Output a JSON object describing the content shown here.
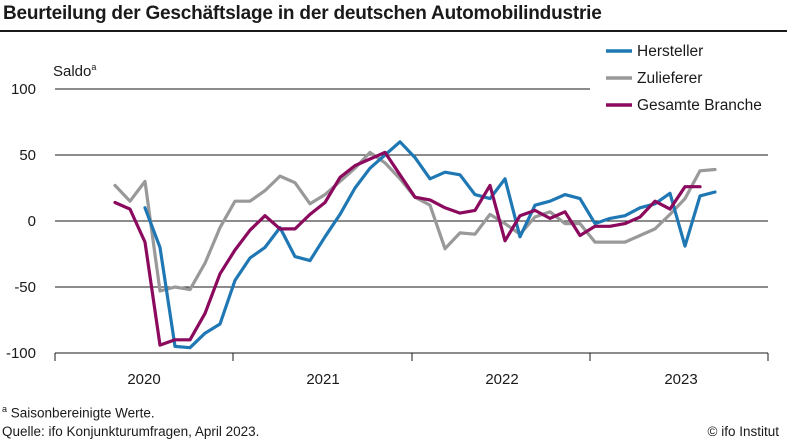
{
  "title": "Beurteilung der Geschäftslage in der deutschen Automobilindustrie",
  "footnote_marker": "a",
  "footnote_text": "Saisonbereinigte Werte.",
  "source": "Quelle: ifo Konjunkturumfragen, April 2023.",
  "credit": "© ifo Institut",
  "chart_data": {
    "type": "line",
    "ylabel": "Saldo",
    "ylabel_marker": "a",
    "ylim": [
      -100,
      100
    ],
    "yticks": [
      100,
      50,
      0,
      -50,
      -100
    ],
    "grid": "horizontal",
    "legend_position": "top-right",
    "year_labels": [
      "2020",
      "2021",
      "2022",
      "2023"
    ],
    "x": [
      "2019-07",
      "2019-08",
      "2019-09",
      "2019-10",
      "2019-11",
      "2019-12",
      "2020-01",
      "2020-02",
      "2020-03",
      "2020-04",
      "2020-05",
      "2020-06",
      "2020-07",
      "2020-08",
      "2020-09",
      "2020-10",
      "2020-11",
      "2020-12",
      "2021-01",
      "2021-02",
      "2021-03",
      "2021-04",
      "2021-05",
      "2021-06",
      "2021-07",
      "2021-08",
      "2021-09",
      "2021-10",
      "2021-11",
      "2021-12",
      "2022-01",
      "2022-02",
      "2022-03",
      "2022-04",
      "2022-05",
      "2022-06",
      "2022-07",
      "2022-08",
      "2022-09",
      "2022-10",
      "2022-11",
      "2022-12",
      "2023-01",
      "2023-02",
      "2023-03",
      "2023-04"
    ],
    "series": [
      {
        "name": "Hersteller",
        "color": "#1f78b4",
        "values": [
          null,
          null,
          10,
          -20,
          -95,
          -96,
          -85,
          -78,
          -45,
          -28,
          -20,
          -5,
          -27,
          -30,
          -12,
          5,
          25,
          40,
          50,
          60,
          48,
          32,
          37,
          35,
          20,
          17,
          32,
          -12,
          12,
          15,
          20,
          17,
          -2,
          2,
          4,
          10,
          13,
          21,
          -19,
          19,
          22,
          null,
          null,
          null,
          null,
          null
        ]
      },
      {
        "name": "Zulieferer",
        "color": "#999999",
        "values": [
          27,
          15,
          30,
          -53,
          -50,
          -52,
          -32,
          -5,
          15,
          15,
          23,
          34,
          29,
          13,
          20,
          30,
          40,
          52,
          44,
          32,
          18,
          12,
          -21,
          -9,
          -10,
          5,
          -2,
          -10,
          3,
          7,
          -2,
          -2,
          -16,
          -16,
          -16,
          -11,
          -6,
          5,
          17,
          38,
          39,
          null,
          null,
          null,
          null,
          null
        ]
      },
      {
        "name": "Gesamte Branche",
        "color": "#8b0a5e",
        "values": [
          14,
          9,
          -16,
          -94,
          -90,
          -90,
          -70,
          -40,
          -22,
          -7,
          4,
          -6,
          -6,
          5,
          14,
          33,
          42,
          47,
          52,
          35,
          18,
          16,
          10,
          6,
          8,
          27,
          -15,
          4,
          8,
          2,
          7,
          -11,
          -4,
          -4,
          -2,
          3,
          15,
          9,
          26,
          26,
          null,
          null,
          null,
          null,
          null,
          null
        ]
      }
    ]
  }
}
